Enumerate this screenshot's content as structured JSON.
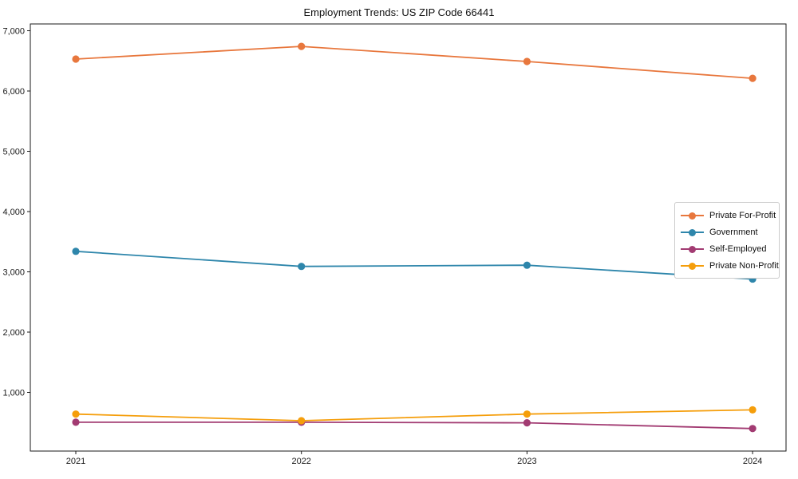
{
  "title": "Employment Trends: US ZIP Code 66441",
  "chart_data": {
    "type": "line",
    "title": "Employment Trends: US ZIP Code 66441",
    "xlabel": "",
    "ylabel": "",
    "categories": [
      "2021",
      "2022",
      "2023",
      "2024"
    ],
    "series": [
      {
        "name": "Private For-Profit",
        "color": "#E8773D",
        "values": [
          6530,
          6740,
          6490,
          6210
        ]
      },
      {
        "name": "Government",
        "color": "#2E86AB",
        "values": [
          3340,
          3090,
          3110,
          2880
        ]
      },
      {
        "name": "Self-Employed",
        "color": "#A23B72",
        "values": [
          505,
          505,
          495,
          400
        ]
      },
      {
        "name": "Private Non-Profit",
        "color": "#F59E0B",
        "values": [
          640,
          530,
          640,
          710
        ]
      }
    ],
    "ylim": [
      0,
      7130
    ],
    "yticks": [
      1000,
      2000,
      3000,
      4000,
      5000,
      6000,
      7000
    ],
    "ytick_labels": [
      "1,000",
      "2,000",
      "3,000",
      "4,000",
      "5,000",
      "6,000",
      "7,000"
    ],
    "grid": false,
    "legend_position": "center-right",
    "axis_color": "#1a1a1a"
  }
}
